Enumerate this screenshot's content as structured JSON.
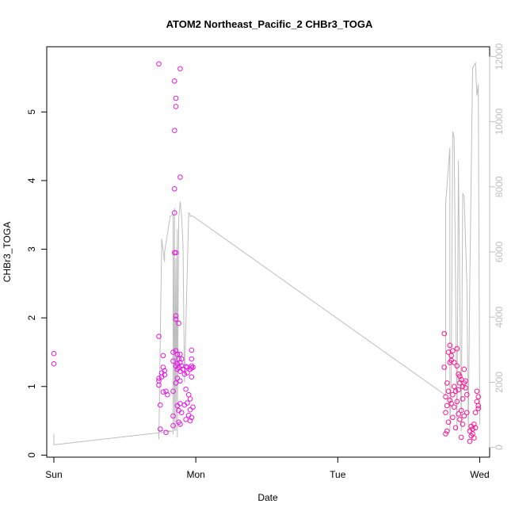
{
  "chart_data": {
    "type": "scatter",
    "title": "ATOM2 Northeast_Pacific_2 CHBr3_TOGA",
    "xlabel": "Date",
    "ylabel": "CHBr3_TOGA",
    "x_ticks": [
      {
        "label": "Sun",
        "value": 0
      },
      {
        "label": "Mon",
        "value": 1
      },
      {
        "label": "Tue",
        "value": 2
      },
      {
        "label": "Wed",
        "value": 3
      }
    ],
    "y_ticks": [
      "0",
      "1",
      "2",
      "3",
      "4",
      "5"
    ],
    "y2_ticks": [
      "0",
      "2000",
      "4000",
      "6000",
      "8000",
      "10000",
      "12000"
    ],
    "xlim": [
      -0.05,
      3.07
    ],
    "ylim": [
      -0.03,
      5.95
    ],
    "y2lim": [
      -300,
      12300
    ],
    "grid": false,
    "colors": {
      "points": "#e619e6",
      "points_alt": "#ff1493",
      "line": "#bebebe",
      "axis": "#000000",
      "right_axis": "#bebebe"
    },
    "series": [
      {
        "type": "scatter",
        "points": [
          [
            0.0,
            1.48
          ],
          [
            0.0,
            1.33
          ],
          [
            0.74,
            5.7
          ],
          [
            0.74,
            1.73
          ],
          [
            0.74,
            1.12
          ],
          [
            0.74,
            1.08
          ],
          [
            0.74,
            1.02
          ],
          [
            0.75,
            0.73
          ],
          [
            0.75,
            0.38
          ],
          [
            0.76,
            1.2
          ],
          [
            0.76,
            1.14
          ],
          [
            0.77,
            1.45
          ],
          [
            0.77,
            1.28
          ],
          [
            0.77,
            0.92
          ],
          [
            0.78,
            1.23
          ],
          [
            0.78,
            1.17
          ],
          [
            0.79,
            0.93
          ],
          [
            0.79,
            0.33
          ],
          [
            0.8,
            0.88
          ],
          [
            0.84,
            1.5
          ],
          [
            0.84,
            1.37
          ],
          [
            0.84,
            0.93
          ],
          [
            0.84,
            0.57
          ],
          [
            0.84,
            0.43
          ],
          [
            0.85,
            5.45
          ],
          [
            0.85,
            4.73
          ],
          [
            0.85,
            3.88
          ],
          [
            0.85,
            3.53
          ],
          [
            0.85,
            2.95
          ],
          [
            0.86,
            5.2
          ],
          [
            0.86,
            5.08
          ],
          [
            0.86,
            2.95
          ],
          [
            0.86,
            2.03
          ],
          [
            0.86,
            1.98
          ],
          [
            0.86,
            1.52
          ],
          [
            0.86,
            1.3
          ],
          [
            0.86,
            1.05
          ],
          [
            0.87,
            1.47
          ],
          [
            0.87,
            1.33
          ],
          [
            0.87,
            1.25
          ],
          [
            0.87,
            1.12
          ],
          [
            0.87,
            0.72
          ],
          [
            0.88,
            1.92
          ],
          [
            0.88,
            1.4
          ],
          [
            0.88,
            1.28
          ],
          [
            0.88,
            0.48
          ],
          [
            0.88,
            0.65
          ],
          [
            0.89,
            5.63
          ],
          [
            0.89,
            4.05
          ],
          [
            0.89,
            1.47
          ],
          [
            0.89,
            1.35
          ],
          [
            0.89,
            1.22
          ],
          [
            0.89,
            1.08
          ],
          [
            0.89,
            0.75
          ],
          [
            0.89,
            0.45
          ],
          [
            0.9,
            1.4
          ],
          [
            0.9,
            1.3
          ],
          [
            0.9,
            0.62
          ],
          [
            0.91,
            1.25
          ],
          [
            0.92,
            1.18
          ],
          [
            0.92,
            0.73
          ],
          [
            0.93,
            1.29
          ],
          [
            0.93,
            0.96
          ],
          [
            0.93,
            0.52
          ],
          [
            0.94,
            1.28
          ],
          [
            0.94,
            1.2
          ],
          [
            0.94,
            0.76
          ],
          [
            0.95,
            0.88
          ],
          [
            0.95,
            0.58
          ],
          [
            0.96,
            1.25
          ],
          [
            0.96,
            0.82
          ],
          [
            0.96,
            0.66
          ],
          [
            0.96,
            0.5
          ],
          [
            0.97,
            1.53
          ],
          [
            0.97,
            1.4
          ],
          [
            0.97,
            1.3
          ],
          [
            0.97,
            1.27
          ],
          [
            0.97,
            1.14
          ],
          [
            0.97,
            0.55
          ],
          [
            0.98,
            1.28
          ],
          [
            0.98,
            0.7
          ],
          [
            2.75,
            1.77
          ],
          [
            2.75,
            1.28
          ],
          [
            2.76,
            0.85
          ],
          [
            2.76,
            0.62
          ],
          [
            2.76,
            0.31
          ],
          [
            2.77,
            1.05
          ],
          [
            2.77,
            0.72
          ],
          [
            2.77,
            0.35
          ],
          [
            2.78,
            1.5
          ],
          [
            2.78,
            0.93
          ],
          [
            2.78,
            0.48
          ],
          [
            2.79,
            1.6
          ],
          [
            2.79,
            1.35
          ],
          [
            2.79,
            0.8
          ],
          [
            2.8,
            1.45
          ],
          [
            2.8,
            1.38
          ],
          [
            2.8,
            0.75
          ],
          [
            2.81,
            1.52
          ],
          [
            2.81,
            0.88
          ],
          [
            2.81,
            0.55
          ],
          [
            2.82,
            1.35
          ],
          [
            2.82,
            1.0
          ],
          [
            2.82,
            0.7
          ],
          [
            2.83,
            0.93
          ],
          [
            2.83,
            0.4
          ],
          [
            2.84,
            1.55
          ],
          [
            2.84,
            1.3
          ],
          [
            2.84,
            0.78
          ],
          [
            2.85,
            1.18
          ],
          [
            2.85,
            0.95
          ],
          [
            2.85,
            0.6
          ],
          [
            2.86,
            1.15
          ],
          [
            2.86,
            1.05
          ],
          [
            2.86,
            0.52
          ],
          [
            2.87,
            1.1
          ],
          [
            2.87,
            0.65
          ],
          [
            2.87,
            0.26
          ],
          [
            2.88,
            1.0
          ],
          [
            2.88,
            0.82
          ],
          [
            2.88,
            0.45
          ],
          [
            2.89,
            1.25
          ],
          [
            2.89,
            1.05
          ],
          [
            2.89,
            0.57
          ],
          [
            2.9,
            1.08
          ],
          [
            2.9,
            0.98
          ],
          [
            2.91,
            0.88
          ],
          [
            2.91,
            0.62
          ],
          [
            2.93,
            0.35
          ],
          [
            2.93,
            0.2
          ],
          [
            2.94,
            0.42
          ],
          [
            2.94,
            0.28
          ],
          [
            2.95,
            0.38
          ],
          [
            2.95,
            0.31
          ],
          [
            2.96,
            0.45
          ],
          [
            2.96,
            0.25
          ],
          [
            2.97,
            0.4
          ],
          [
            2.97,
            0.62
          ],
          [
            2.98,
            0.93
          ],
          [
            2.98,
            0.78
          ],
          [
            2.99,
            0.85
          ],
          [
            2.99,
            0.72
          ],
          [
            2.99,
            0.68
          ]
        ]
      },
      {
        "type": "line",
        "axis": "right",
        "points": [
          [
            0.0,
            420
          ],
          [
            0.0,
            80
          ],
          [
            0.84,
            500
          ],
          [
            0.74,
            520
          ],
          [
            0.74,
            250
          ],
          [
            0.76,
            6400
          ],
          [
            0.78,
            5700
          ],
          [
            0.78,
            6000
          ],
          [
            0.82,
            7100
          ],
          [
            0.84,
            7150
          ],
          [
            0.84,
            400
          ],
          [
            0.85,
            7350
          ],
          [
            0.85,
            500
          ],
          [
            0.86,
            5800
          ],
          [
            0.86,
            500
          ],
          [
            0.87,
            6700
          ],
          [
            0.87,
            300
          ],
          [
            0.88,
            7050
          ],
          [
            0.89,
            7550
          ],
          [
            0.9,
            7100
          ],
          [
            0.91,
            6200
          ],
          [
            0.92,
            2000
          ],
          [
            0.95,
            7200
          ],
          [
            0.96,
            7150
          ],
          [
            0.96,
            7100
          ],
          [
            0.98,
            7100
          ],
          [
            2.76,
            1600
          ],
          [
            2.76,
            7500
          ],
          [
            2.79,
            9200
          ],
          [
            2.79,
            500
          ],
          [
            2.8,
            2300
          ],
          [
            2.81,
            9700
          ],
          [
            2.82,
            9500
          ],
          [
            2.84,
            500
          ],
          [
            2.85,
            8800
          ],
          [
            2.85,
            8750
          ],
          [
            2.87,
            500
          ],
          [
            2.88,
            7800
          ],
          [
            2.89,
            7700
          ],
          [
            2.91,
            5000
          ],
          [
            2.92,
            500
          ],
          [
            2.93,
            5000
          ],
          [
            2.95,
            11650
          ],
          [
            2.97,
            11800
          ],
          [
            2.98,
            10800
          ],
          [
            2.99,
            11150
          ],
          [
            2.99,
            10900
          ],
          [
            3.0,
            700
          ]
        ]
      }
    ]
  }
}
